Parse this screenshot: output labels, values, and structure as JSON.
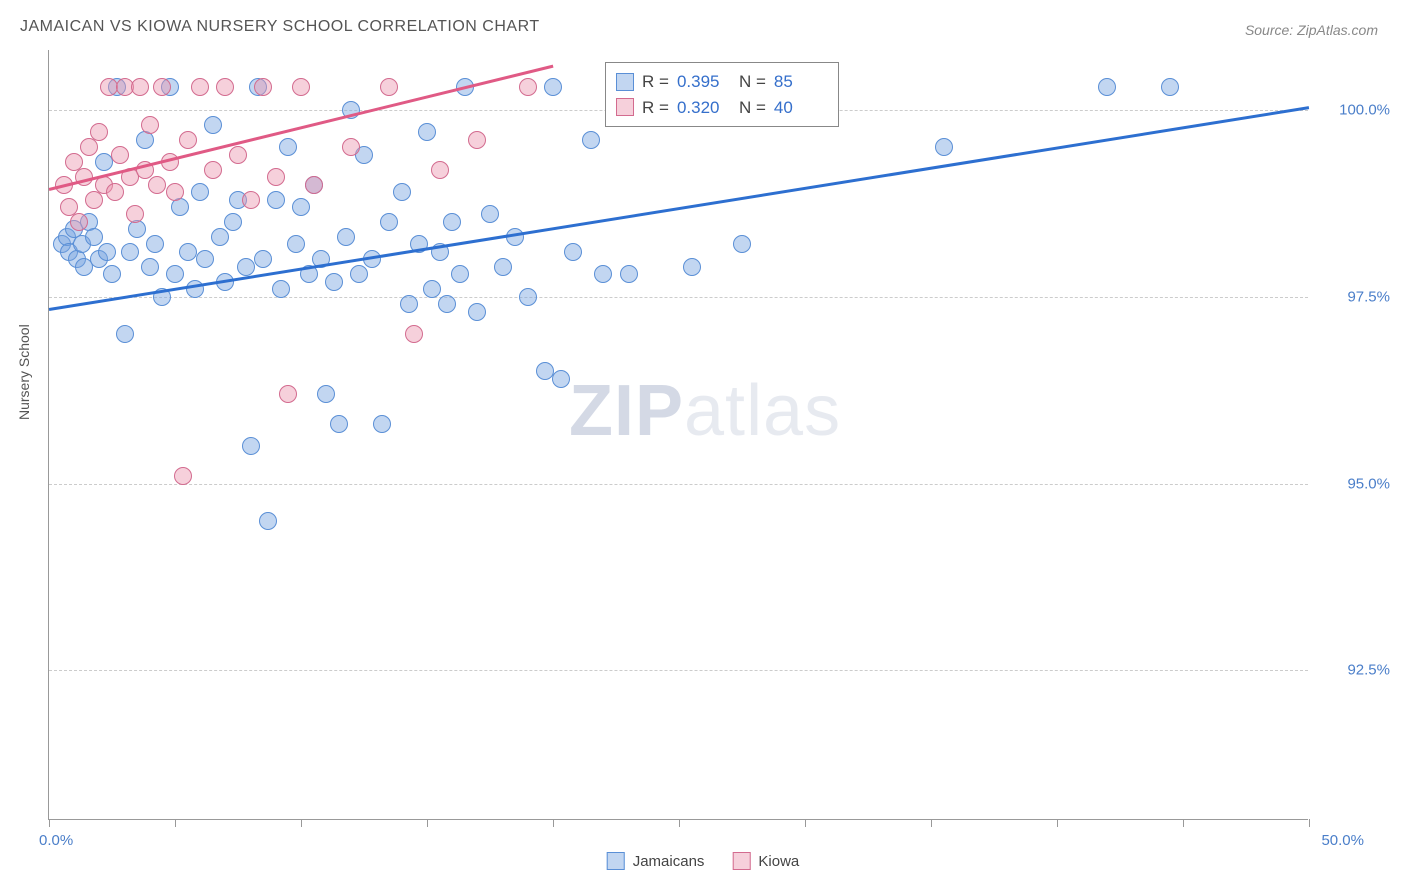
{
  "title": "JAMAICAN VS KIOWA NURSERY SCHOOL CORRELATION CHART",
  "source": "Source: ZipAtlas.com",
  "ylabel": "Nursery School",
  "watermark": {
    "zip": "ZIP",
    "atlas": "atlas"
  },
  "chart": {
    "type": "scatter",
    "xlim": [
      0,
      50
    ],
    "ylim": [
      90.5,
      100.8
    ],
    "xticks": [
      0,
      5,
      10,
      15,
      20,
      25,
      30,
      35,
      40,
      45,
      50
    ],
    "yticks": [
      92.5,
      95.0,
      97.5,
      100.0
    ],
    "ytick_labels": [
      "92.5%",
      "95.0%",
      "97.5%",
      "100.0%"
    ],
    "xlabel_min": "0.0%",
    "xlabel_max": "50.0%",
    "background_color": "#ffffff",
    "grid_color": "#cccccc",
    "marker_radius": 9,
    "series": [
      {
        "name": "Jamaicans",
        "color_fill": "rgba(120,165,225,0.45)",
        "color_stroke": "#5a8fd6",
        "trend_color": "#2d6fd0",
        "trend": {
          "x1": 0,
          "y1": 97.35,
          "x2": 50,
          "y2": 100.05
        },
        "stats": {
          "R": "0.395",
          "N": "85"
        },
        "points": [
          [
            0.5,
            98.2
          ],
          [
            0.7,
            98.3
          ],
          [
            0.8,
            98.1
          ],
          [
            1.0,
            98.4
          ],
          [
            1.1,
            98.0
          ],
          [
            1.3,
            98.2
          ],
          [
            1.4,
            97.9
          ],
          [
            1.6,
            98.5
          ],
          [
            1.8,
            98.3
          ],
          [
            2.0,
            98.0
          ],
          [
            2.2,
            99.3
          ],
          [
            2.3,
            98.1
          ],
          [
            2.5,
            97.8
          ],
          [
            2.7,
            100.3
          ],
          [
            3.0,
            97.0
          ],
          [
            3.2,
            98.1
          ],
          [
            3.5,
            98.4
          ],
          [
            3.8,
            99.6
          ],
          [
            4.0,
            97.9
          ],
          [
            4.2,
            98.2
          ],
          [
            4.5,
            97.5
          ],
          [
            4.8,
            100.3
          ],
          [
            5.0,
            97.8
          ],
          [
            5.2,
            98.7
          ],
          [
            5.5,
            98.1
          ],
          [
            5.8,
            97.6
          ],
          [
            6.0,
            98.9
          ],
          [
            6.2,
            98.0
          ],
          [
            6.5,
            99.8
          ],
          [
            6.8,
            98.3
          ],
          [
            7.0,
            97.7
          ],
          [
            7.3,
            98.5
          ],
          [
            7.5,
            98.8
          ],
          [
            7.8,
            97.9
          ],
          [
            8.0,
            95.5
          ],
          [
            8.3,
            100.3
          ],
          [
            8.5,
            98.0
          ],
          [
            8.7,
            94.5
          ],
          [
            9.0,
            98.8
          ],
          [
            9.2,
            97.6
          ],
          [
            9.5,
            99.5
          ],
          [
            9.8,
            98.2
          ],
          [
            10.0,
            98.7
          ],
          [
            10.3,
            97.8
          ],
          [
            10.5,
            99.0
          ],
          [
            10.8,
            98.0
          ],
          [
            11.0,
            96.2
          ],
          [
            11.3,
            97.7
          ],
          [
            11.5,
            95.8
          ],
          [
            11.8,
            98.3
          ],
          [
            12.0,
            100.0
          ],
          [
            12.3,
            97.8
          ],
          [
            12.5,
            99.4
          ],
          [
            12.8,
            98.0
          ],
          [
            13.2,
            95.8
          ],
          [
            13.5,
            98.5
          ],
          [
            14.0,
            98.9
          ],
          [
            14.3,
            97.4
          ],
          [
            14.7,
            98.2
          ],
          [
            15.0,
            99.7
          ],
          [
            15.2,
            97.6
          ],
          [
            15.5,
            98.1
          ],
          [
            15.8,
            97.4
          ],
          [
            16.0,
            98.5
          ],
          [
            16.3,
            97.8
          ],
          [
            16.5,
            100.3
          ],
          [
            17.0,
            97.3
          ],
          [
            17.5,
            98.6
          ],
          [
            18.0,
            97.9
          ],
          [
            18.5,
            98.3
          ],
          [
            19.0,
            97.5
          ],
          [
            19.7,
            96.5
          ],
          [
            20.0,
            100.3
          ],
          [
            20.3,
            96.4
          ],
          [
            20.8,
            98.1
          ],
          [
            21.5,
            99.6
          ],
          [
            22.0,
            97.8
          ],
          [
            23.0,
            97.8
          ],
          [
            24.5,
            100.3
          ],
          [
            25.5,
            97.9
          ],
          [
            26.0,
            100.3
          ],
          [
            27.5,
            98.2
          ],
          [
            35.5,
            99.5
          ],
          [
            42.0,
            100.3
          ],
          [
            44.5,
            100.3
          ]
        ]
      },
      {
        "name": "Kiowa",
        "color_fill": "rgba(235,150,175,0.45)",
        "color_stroke": "#d36b8f",
        "trend_color": "#e05a85",
        "trend": {
          "x1": 0,
          "y1": 98.95,
          "x2": 20,
          "y2": 100.6
        },
        "stats": {
          "R": "0.320",
          "N": "40"
        },
        "points": [
          [
            0.6,
            99.0
          ],
          [
            0.8,
            98.7
          ],
          [
            1.0,
            99.3
          ],
          [
            1.2,
            98.5
          ],
          [
            1.4,
            99.1
          ],
          [
            1.6,
            99.5
          ],
          [
            1.8,
            98.8
          ],
          [
            2.0,
            99.7
          ],
          [
            2.2,
            99.0
          ],
          [
            2.4,
            100.3
          ],
          [
            2.6,
            98.9
          ],
          [
            2.8,
            99.4
          ],
          [
            3.0,
            100.3
          ],
          [
            3.2,
            99.1
          ],
          [
            3.4,
            98.6
          ],
          [
            3.6,
            100.3
          ],
          [
            3.8,
            99.2
          ],
          [
            4.0,
            99.8
          ],
          [
            4.3,
            99.0
          ],
          [
            4.5,
            100.3
          ],
          [
            4.8,
            99.3
          ],
          [
            5.0,
            98.9
          ],
          [
            5.3,
            95.1
          ],
          [
            5.5,
            99.6
          ],
          [
            6.0,
            100.3
          ],
          [
            6.5,
            99.2
          ],
          [
            7.0,
            100.3
          ],
          [
            7.5,
            99.4
          ],
          [
            8.0,
            98.8
          ],
          [
            8.5,
            100.3
          ],
          [
            9.0,
            99.1
          ],
          [
            9.5,
            96.2
          ],
          [
            10.0,
            100.3
          ],
          [
            10.5,
            99.0
          ],
          [
            12.0,
            99.5
          ],
          [
            13.5,
            100.3
          ],
          [
            14.5,
            97.0
          ],
          [
            15.5,
            99.2
          ],
          [
            17.0,
            99.6
          ],
          [
            19.0,
            100.3
          ]
        ]
      }
    ]
  },
  "legend_stats": {
    "R_label": "R =",
    "N_label": "N ="
  },
  "bottom_legend": [
    "Jamaicans",
    "Kiowa"
  ]
}
